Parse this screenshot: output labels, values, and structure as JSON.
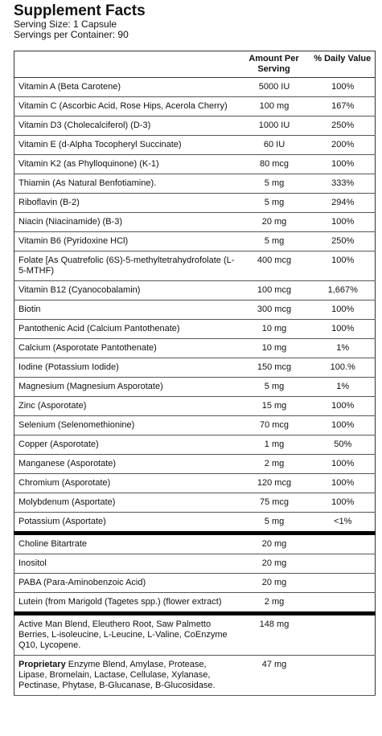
{
  "header": {
    "title": "Supplement Facts",
    "serving_size": "Serving Size: 1 Capsule",
    "servings_per_container": "Servings per Container: 90"
  },
  "table": {
    "columns": [
      "Amount Per Serving",
      "% Daily Value"
    ],
    "sections": [
      {
        "rows": [
          {
            "name": "Vitamin A (Beta Carotene)",
            "amount": "5000 IU",
            "dv": "100%"
          },
          {
            "name": "Vitamin C (Ascorbic Acid, Rose Hips, Acerola Cherry)",
            "amount": "100 mg",
            "dv": "167%"
          },
          {
            "name": "Vitamin D3 (Cholecalciferol) (D-3)",
            "amount": "1000 IU",
            "dv": "250%"
          },
          {
            "name": "Vitamin E (d-Alpha Tocopheryl Succinate)",
            "amount": "60 IU",
            "dv": "200%"
          },
          {
            "name": "Vitamin K2 (as Phylloquinone) (K-1)",
            "amount": "80 mcg",
            "dv": "100%"
          },
          {
            "name": "Thiamin (As Natural Benfotiamine).",
            "amount": "5 mg",
            "dv": "333%"
          },
          {
            "name": "Riboflavin (B-2)",
            "amount": "5 mg",
            "dv": "294%"
          },
          {
            "name": "Niacin (Niacinamide) (B-3)",
            "amount": "20 mg",
            "dv": "100%"
          },
          {
            "name": "Vitamin B6 (Pyridoxine HCl)",
            "amount": "5 mg",
            "dv": "250%"
          },
          {
            "name": "Folate [As Quatrefolic (6S)-5-methyltetrahydrofolate (L-5-MTHF)",
            "amount": "400 mcg",
            "dv": "100%"
          },
          {
            "name": "Vitamin B12 (Cyanocobalamin)",
            "amount": "100 mcg",
            "dv": "1,667%"
          },
          {
            "name": "Biotin",
            "amount": "300 mcg",
            "dv": "100%"
          },
          {
            "name": "Pantothenic Acid (Calcium Pantothenate)",
            "amount": "10 mg",
            "dv": "100%"
          },
          {
            "name": "Calcium (Asporotate Pantothenate)",
            "amount": "10 mg",
            "dv": "1%"
          },
          {
            "name": "Iodine (Potassium Iodide)",
            "amount": "150 mcg",
            "dv": "100.%"
          },
          {
            "name": "Magnesium (Magnesium Asporotate)",
            "amount": "5 mg",
            "dv": "1%"
          },
          {
            "name": "Zinc (Asporotate)",
            "amount": "15 mg",
            "dv": "100%"
          },
          {
            "name": "Selenium (Selenomethionine)",
            "amount": "70 mcg",
            "dv": "100%"
          },
          {
            "name": "Copper (Asporotate)",
            "amount": "1 mg",
            "dv": "50%"
          },
          {
            "name": "Manganese (Asporotate)",
            "amount": "2 mg",
            "dv": "100%"
          },
          {
            "name": "Chromium (Asporotate)",
            "amount": "120 mcg",
            "dv": "100%"
          },
          {
            "name": "Molybdenum (Asportate)",
            "amount": "75 mcg",
            "dv": "100%"
          },
          {
            "name": "Potassium (Asportate)",
            "amount": "5 mg",
            "dv": "<1%"
          }
        ]
      },
      {
        "rows": [
          {
            "name": "Choline Bitartrate",
            "amount": "20 mg"
          },
          {
            "name": "Inositol",
            "amount": "20 mg"
          },
          {
            "name": "PABA (Para-Aminobenzoic Acid)",
            "amount": "20 mg"
          },
          {
            "name": "Lutein (from Marigold (Tagetes spp.) (flower extract)",
            "amount": "2 mg"
          }
        ]
      },
      {
        "rows": [
          {
            "name": "Active Man Blend, Eleuthero Root, Saw Palmetto Berries, L-isoleucine, L-Leucine, L-Valine, CoEnzyme Q10, Lycopene.",
            "amount": "148 mg"
          },
          {
            "name_bold": "Proprietary",
            "name": "Enzyme Blend, Amylase, Protease, Lipase, Bromelain, Lactase, Cellulase, Xylanase, Pectinase, Phytase, B-Glucanase, B-Glucosidase.",
            "amount": "47 mg"
          }
        ]
      }
    ]
  }
}
